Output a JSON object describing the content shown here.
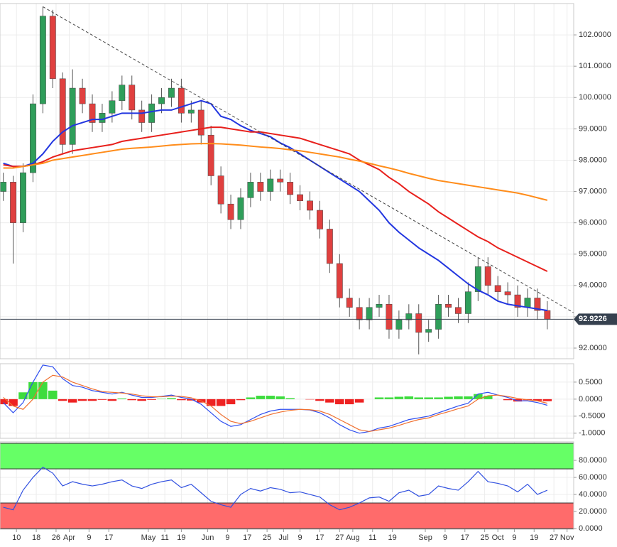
{
  "chart_data": [
    {
      "type": "candlestick",
      "xlim": [
        -1,
        173
      ],
      "x": [
        0,
        3,
        6,
        9,
        12,
        15,
        18,
        21,
        24,
        27,
        30,
        33,
        36,
        39,
        42,
        45,
        48,
        51,
        54,
        57,
        60,
        63,
        66,
        69,
        72,
        75,
        78,
        81,
        84,
        87,
        90,
        93,
        96,
        99,
        102,
        105,
        108,
        111,
        114,
        117,
        120,
        123,
        126,
        129,
        132,
        135,
        138,
        141,
        144,
        147,
        150,
        153,
        156,
        159,
        162,
        165
      ],
      "open": [
        97.0,
        97.3,
        96.0,
        97.6,
        99.8,
        102.6,
        100.6,
        98.5,
        100.3,
        99.8,
        99.2,
        99.5,
        99.9,
        100.4,
        99.6,
        99.2,
        99.8,
        100.0,
        100.3,
        99.5,
        99.6,
        98.8,
        97.5,
        96.6,
        96.1,
        96.8,
        97.3,
        97.0,
        97.4,
        97.3,
        96.9,
        96.7,
        96.4,
        95.8,
        94.7,
        93.6,
        93.3,
        92.9,
        93.3,
        93.4,
        92.6,
        92.9,
        93.1,
        92.5,
        92.6,
        93.4,
        93.3,
        93.1,
        93.8,
        94.6,
        94.0,
        93.8,
        93.7,
        93.3,
        93.6,
        93.2
      ],
      "high": [
        97.6,
        97.5,
        97.9,
        100.1,
        102.9,
        102.8,
        100.8,
        100.9,
        100.6,
        100.1,
        99.8,
        100.2,
        100.7,
        100.7,
        99.9,
        100.1,
        100.3,
        100.6,
        100.6,
        99.9,
        99.9,
        99.1,
        97.8,
        96.9,
        97.1,
        97.6,
        97.6,
        97.7,
        97.7,
        97.6,
        97.2,
        97.0,
        96.7,
        96.1,
        95.0,
        93.9,
        93.6,
        93.6,
        93.7,
        93.7,
        93.2,
        93.4,
        93.4,
        92.9,
        93.7,
        93.7,
        93.6,
        94.1,
        94.9,
        94.9,
        94.3,
        94.1,
        94.0,
        93.9,
        93.9,
        93.5
      ],
      "low": [
        96.7,
        94.7,
        95.7,
        97.3,
        99.5,
        100.3,
        98.2,
        98.2,
        99.5,
        98.9,
        98.9,
        99.2,
        99.6,
        99.3,
        98.9,
        98.9,
        99.5,
        99.7,
        99.2,
        99.2,
        98.5,
        97.2,
        96.3,
        95.8,
        95.8,
        96.5,
        96.7,
        96.7,
        97.0,
        96.6,
        96.4,
        96.1,
        95.5,
        94.4,
        93.3,
        93.0,
        92.6,
        92.6,
        93.0,
        92.3,
        92.3,
        92.6,
        91.8,
        92.2,
        92.3,
        93.0,
        92.8,
        92.8,
        93.5,
        93.7,
        93.5,
        93.4,
        93.0,
        93.0,
        92.9,
        92.6
      ],
      "close": [
        97.3,
        96.0,
        97.6,
        99.8,
        102.6,
        100.6,
        98.5,
        100.3,
        99.8,
        99.2,
        99.5,
        99.9,
        100.4,
        99.6,
        99.2,
        99.8,
        100.0,
        100.3,
        99.5,
        99.6,
        98.8,
        97.5,
        96.6,
        96.1,
        96.8,
        97.3,
        97.0,
        97.4,
        97.3,
        96.9,
        96.7,
        96.4,
        95.8,
        94.7,
        93.6,
        93.3,
        92.9,
        93.3,
        93.4,
        92.6,
        92.9,
        93.1,
        92.5,
        92.6,
        93.4,
        93.3,
        93.1,
        93.8,
        94.6,
        94.0,
        93.8,
        93.7,
        93.3,
        93.6,
        93.2,
        92.92
      ],
      "up_color": "#2f9e5a",
      "down_color": "#e0403f",
      "series": [
        {
          "color": "#2236e0",
          "values": [
            97.9,
            97.8,
            97.8,
            97.9,
            98.2,
            98.6,
            98.9,
            99.1,
            99.2,
            99.3,
            99.3,
            99.4,
            99.5,
            99.5,
            99.5,
            99.55,
            99.6,
            99.6,
            99.7,
            99.8,
            99.9,
            99.8,
            99.4,
            99.3,
            99.1,
            98.95,
            98.85,
            98.75,
            98.55,
            98.4,
            98.2,
            98.0,
            97.8,
            97.6,
            97.4,
            97.2,
            97.0,
            96.7,
            96.4,
            96.0,
            95.7,
            95.45,
            95.2,
            95.0,
            94.8,
            94.55,
            94.3,
            94.05,
            93.85,
            93.7,
            93.5,
            93.4,
            93.35,
            93.3,
            93.25,
            93.2
          ]
        },
        {
          "color": "#e8201c",
          "values": [
            97.85,
            97.8,
            97.8,
            97.85,
            97.95,
            98.1,
            98.2,
            98.3,
            98.35,
            98.4,
            98.45,
            98.5,
            98.6,
            98.65,
            98.7,
            98.75,
            98.8,
            98.85,
            98.9,
            98.95,
            99.0,
            99.05,
            99.05,
            99.0,
            98.95,
            98.9,
            98.9,
            98.85,
            98.8,
            98.75,
            98.7,
            98.6,
            98.5,
            98.4,
            98.3,
            98.2,
            98.0,
            97.85,
            97.7,
            97.45,
            97.25,
            97.0,
            96.8,
            96.6,
            96.35,
            96.15,
            95.95,
            95.75,
            95.55,
            95.4,
            95.2,
            95.05,
            94.9,
            94.75,
            94.6,
            94.45
          ]
        },
        {
          "color": "#ff8c1a",
          "values": [
            97.75,
            97.75,
            97.8,
            97.85,
            97.9,
            98.0,
            98.05,
            98.1,
            98.15,
            98.2,
            98.25,
            98.3,
            98.35,
            98.38,
            98.4,
            98.42,
            98.45,
            98.48,
            98.5,
            98.52,
            98.53,
            98.53,
            98.52,
            98.5,
            98.48,
            98.45,
            98.42,
            98.4,
            98.37,
            98.33,
            98.3,
            98.25,
            98.2,
            98.15,
            98.1,
            98.03,
            97.97,
            97.9,
            97.82,
            97.75,
            97.67,
            97.58,
            97.5,
            97.42,
            97.35,
            97.3,
            97.25,
            97.2,
            97.15,
            97.1,
            97.05,
            97.0,
            96.95,
            96.88,
            96.8,
            96.72
          ]
        }
      ],
      "trendline": {
        "x": [
          12,
          173
        ],
        "values": [
          102.9,
          93.13
        ],
        "color": "#444444"
      },
      "last_price": 92.9226,
      "ylim": [
        91.66,
        103.0
      ],
      "yticks": [
        {
          "value": 92,
          "label": "92.0000"
        },
        {
          "value": 93,
          "label": "93.0000"
        },
        {
          "value": 94,
          "label": "94.0000"
        },
        {
          "value": 95,
          "label": "95.0000"
        },
        {
          "value": 96,
          "label": "96.0000"
        },
        {
          "value": 97,
          "label": "97.0000"
        },
        {
          "value": 98,
          "label": "98.0000"
        },
        {
          "value": 99,
          "label": "99.0000"
        },
        {
          "value": 100,
          "label": "100.0000"
        },
        {
          "value": 101,
          "label": "101.0000"
        },
        {
          "value": 102,
          "label": "102.0000"
        }
      ],
      "grid": true
    },
    {
      "type": "macd",
      "xlim": [
        -1,
        173
      ],
      "x": [
        0,
        3,
        6,
        9,
        12,
        15,
        18,
        21,
        24,
        27,
        30,
        33,
        36,
        39,
        42,
        45,
        48,
        51,
        54,
        57,
        60,
        63,
        66,
        69,
        72,
        75,
        78,
        81,
        84,
        87,
        90,
        93,
        96,
        99,
        102,
        105,
        108,
        111,
        114,
        117,
        120,
        123,
        126,
        129,
        132,
        135,
        138,
        141,
        144,
        147,
        150,
        153,
        156,
        159,
        162,
        165
      ],
      "histogram": [
        -0.15,
        -0.2,
        0.2,
        0.5,
        0.5,
        0.25,
        -0.05,
        -0.1,
        -0.05,
        -0.05,
        -0.02,
        -0.05,
        0.02,
        -0.03,
        -0.05,
        -0.02,
        0.01,
        0.03,
        -0.03,
        -0.04,
        -0.1,
        -0.2,
        -0.2,
        -0.15,
        -0.03,
        0.05,
        0.1,
        0.1,
        0.08,
        0.03,
        0.0,
        -0.01,
        -0.05,
        -0.1,
        -0.15,
        -0.15,
        -0.1,
        0.0,
        0.05,
        0.05,
        0.07,
        0.08,
        0.05,
        0.05,
        0.05,
        0.07,
        0.08,
        0.08,
        0.15,
        0.1,
        0.0,
        -0.03,
        -0.07,
        -0.03,
        -0.05,
        -0.06
      ],
      "up_color": "#3ddc3d",
      "down_color": "#ee2222",
      "series": [
        {
          "color": "#2f4ff0",
          "values": [
            -0.1,
            -0.4,
            -0.1,
            0.5,
            1.0,
            0.95,
            0.6,
            0.4,
            0.35,
            0.25,
            0.2,
            0.15,
            0.2,
            0.12,
            0.05,
            0.05,
            0.08,
            0.12,
            0.05,
            0.0,
            -0.15,
            -0.4,
            -0.65,
            -0.8,
            -0.75,
            -0.6,
            -0.45,
            -0.35,
            -0.3,
            -0.3,
            -0.3,
            -0.32,
            -0.4,
            -0.55,
            -0.75,
            -0.9,
            -1.0,
            -0.95,
            -0.85,
            -0.8,
            -0.7,
            -0.6,
            -0.55,
            -0.5,
            -0.4,
            -0.3,
            -0.2,
            -0.12,
            0.15,
            0.2,
            0.12,
            0.05,
            -0.05,
            -0.05,
            -0.1,
            -0.18
          ]
        },
        {
          "color": "#f07030",
          "values": [
            0.05,
            -0.2,
            -0.3,
            0.0,
            0.5,
            0.7,
            0.65,
            0.5,
            0.4,
            0.3,
            0.22,
            0.2,
            0.18,
            0.15,
            0.1,
            0.07,
            0.07,
            0.09,
            0.08,
            0.04,
            -0.05,
            -0.2,
            -0.45,
            -0.65,
            -0.72,
            -0.65,
            -0.55,
            -0.45,
            -0.38,
            -0.33,
            -0.3,
            -0.31,
            -0.35,
            -0.45,
            -0.6,
            -0.75,
            -0.9,
            -0.95,
            -0.9,
            -0.85,
            -0.77,
            -0.68,
            -0.6,
            -0.55,
            -0.45,
            -0.37,
            -0.28,
            -0.2,
            0.0,
            0.1,
            0.12,
            0.08,
            0.02,
            -0.02,
            -0.05,
            -0.12
          ]
        }
      ],
      "ylim": [
        -1.15,
        1.04
      ],
      "yticks": [
        {
          "value": 0.5,
          "label": "0.5000"
        },
        {
          "value": 0,
          "label": "0.0000"
        },
        {
          "value": -0.5,
          "label": "-0.5000"
        },
        {
          "value": -1,
          "label": "-1.0000"
        }
      ],
      "grid": true
    },
    {
      "type": "line",
      "xlim": [
        -1,
        173
      ],
      "x": [
        0,
        3,
        6,
        9,
        12,
        15,
        18,
        21,
        24,
        27,
        30,
        33,
        36,
        39,
        42,
        45,
        48,
        51,
        54,
        57,
        60,
        63,
        66,
        69,
        72,
        75,
        78,
        81,
        84,
        87,
        90,
        93,
        96,
        99,
        102,
        105,
        108,
        111,
        114,
        117,
        120,
        123,
        126,
        129,
        132,
        135,
        138,
        141,
        144,
        147,
        150,
        153,
        156,
        159,
        162,
        165
      ],
      "bands": [
        {
          "range": [
            70,
            100
          ],
          "color": "#66ff66"
        },
        {
          "range": [
            0,
            30
          ],
          "color": "#ff6b6b"
        }
      ],
      "series": [
        {
          "color": "#3050e0",
          "values": [
            25,
            22,
            45,
            60,
            72,
            65,
            50,
            55,
            52,
            50,
            52,
            55,
            57,
            50,
            47,
            52,
            55,
            57,
            48,
            52,
            42,
            32,
            28,
            25,
            40,
            47,
            44,
            48,
            46,
            42,
            43,
            40,
            37,
            28,
            22,
            25,
            30,
            36,
            37,
            32,
            42,
            45,
            38,
            40,
            50,
            47,
            45,
            55,
            67,
            55,
            53,
            50,
            43,
            52,
            40,
            45
          ]
        }
      ],
      "ylim": [
        -0.8,
        101.7
      ],
      "yticks": [
        {
          "value": 0,
          "label": "0.0000"
        },
        {
          "value": 20,
          "label": "20.0000"
        },
        {
          "value": 40,
          "label": "40.0000"
        },
        {
          "value": 60,
          "label": "60.0000"
        },
        {
          "value": 80,
          "label": "80.0000"
        }
      ],
      "xticks": [
        {
          "value": 4,
          "label": "10"
        },
        {
          "value": 10,
          "label": "18"
        },
        {
          "value": 16,
          "label": "26"
        },
        {
          "value": 20,
          "label": "Apr"
        },
        {
          "value": 26,
          "label": "9"
        },
        {
          "value": 32,
          "label": "17"
        },
        {
          "value": 44,
          "label": "May"
        },
        {
          "value": 49,
          "label": "11"
        },
        {
          "value": 54,
          "label": "19"
        },
        {
          "value": 62,
          "label": "Jun"
        },
        {
          "value": 68,
          "label": "9"
        },
        {
          "value": 74,
          "label": "17"
        },
        {
          "value": 80,
          "label": "25"
        },
        {
          "value": 85,
          "label": "Jul"
        },
        {
          "value": 90,
          "label": "9"
        },
        {
          "value": 96,
          "label": "17"
        },
        {
          "value": 102,
          "label": "27"
        },
        {
          "value": 106,
          "label": "Aug"
        },
        {
          "value": 112,
          "label": "11"
        },
        {
          "value": 118,
          "label": "19"
        },
        {
          "value": 128,
          "label": "Sep"
        },
        {
          "value": 134,
          "label": "9"
        },
        {
          "value": 140,
          "label": "17"
        },
        {
          "value": 146,
          "label": "25"
        },
        {
          "value": 150,
          "label": "Oct"
        },
        {
          "value": 155,
          "label": "9"
        },
        {
          "value": 161,
          "label": "19"
        },
        {
          "value": 167,
          "label": "27"
        },
        {
          "value": 171,
          "label": "Nov"
        }
      ],
      "grid": true
    }
  ]
}
